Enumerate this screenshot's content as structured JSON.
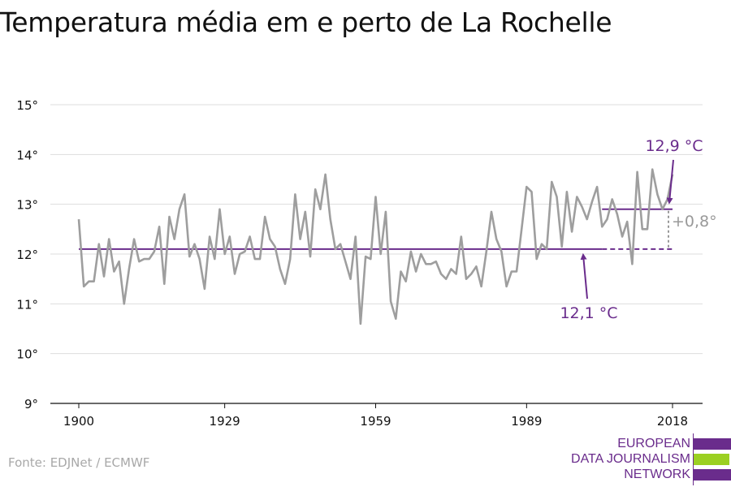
{
  "title": "Temperatura média em e perto de La Rochelle",
  "source": "Fonte: EDJNet / ECMWF",
  "logo": {
    "lines": [
      "EUROPEAN",
      "DATA JOURNALISM",
      "NETWORK"
    ],
    "colors": {
      "purple": "#6a2c8c",
      "green": "#9bd022"
    }
  },
  "colors": {
    "series": "#9e9e9e",
    "reference": "#6a2c8c",
    "grid": "#dddddd",
    "axis": "#111111",
    "delta": "#999999"
  },
  "chart_data": {
    "type": "line",
    "title": "Temperatura média em e perto de La Rochelle",
    "xlabel": "",
    "ylabel": "",
    "xlim": [
      1900,
      2018
    ],
    "ylim": [
      9,
      15
    ],
    "x_ticks": [
      1900,
      1929,
      1959,
      1989,
      2018
    ],
    "y_ticks": [
      9,
      10,
      11,
      12,
      13,
      14,
      15
    ],
    "y_tick_labels": [
      "9°",
      "10°",
      "11°",
      "12°",
      "13°",
      "14°",
      "15°"
    ],
    "grid": true,
    "legend": "none",
    "series": [
      {
        "x": [
          1900,
          1901,
          1902,
          1903,
          1904,
          1905,
          1906,
          1907,
          1908,
          1909,
          1910,
          1911,
          1912,
          1913,
          1914,
          1915,
          1916,
          1917,
          1918,
          1919,
          1920,
          1921,
          1922,
          1923,
          1924,
          1925,
          1926,
          1927,
          1928,
          1929,
          1930,
          1931,
          1932,
          1933,
          1934,
          1935,
          1936,
          1937,
          1938,
          1939,
          1940,
          1941,
          1942,
          1943,
          1944,
          1945,
          1946,
          1947,
          1948,
          1949,
          1950,
          1951,
          1952,
          1953,
          1954,
          1955,
          1956,
          1957,
          1958,
          1959,
          1960,
          1961,
          1962,
          1963,
          1964,
          1965,
          1966,
          1967,
          1968,
          1969,
          1970,
          1971,
          1972,
          1973,
          1974,
          1975,
          1976,
          1977,
          1978,
          1979,
          1980,
          1981,
          1982,
          1983,
          1984,
          1985,
          1986,
          1987,
          1988,
          1989,
          1990,
          1991,
          1992,
          1993,
          1994,
          1995,
          1996,
          1997,
          1998,
          1999,
          2000,
          2001,
          2002,
          2003,
          2004,
          2005,
          2006,
          2007,
          2008,
          2009,
          2010,
          2011,
          2012,
          2013,
          2014,
          2015,
          2016,
          2017,
          2018
        ],
        "values": [
          12.7,
          11.35,
          11.45,
          11.45,
          12.2,
          11.55,
          12.3,
          11.65,
          11.85,
          11.0,
          11.7,
          12.3,
          11.85,
          11.9,
          11.9,
          12.05,
          12.55,
          11.4,
          12.75,
          12.3,
          12.9,
          13.2,
          11.95,
          12.2,
          11.9,
          11.3,
          12.35,
          11.9,
          12.9,
          12.0,
          12.35,
          11.6,
          12.0,
          12.05,
          12.35,
          11.9,
          11.9,
          12.75,
          12.3,
          12.15,
          11.7,
          11.4,
          11.9,
          13.2,
          12.3,
          12.85,
          11.95,
          13.3,
          12.9,
          13.6,
          12.7,
          12.1,
          12.2,
          11.85,
          11.5,
          12.35,
          10.6,
          11.95,
          11.9,
          13.15,
          12.0,
          12.85,
          11.05,
          10.7,
          11.65,
          11.45,
          12.05,
          11.65,
          12.0,
          11.8,
          11.8,
          11.85,
          11.6,
          11.5,
          11.7,
          11.6,
          12.35,
          11.5,
          11.6,
          11.75,
          11.35,
          12.05,
          12.85,
          12.3,
          12.05,
          11.35,
          11.65,
          11.65,
          12.5,
          13.35,
          13.25,
          11.9,
          12.2,
          12.1,
          13.45,
          13.15,
          12.15,
          13.25,
          12.45,
          13.15,
          12.95,
          12.7,
          13.05,
          13.35,
          12.55,
          12.7,
          13.1,
          12.8,
          12.35,
          12.65,
          11.8,
          13.65,
          12.5,
          12.5,
          13.7,
          13.2,
          12.9,
          13.1,
          13.6
        ]
      }
    ],
    "reference_lines": [
      {
        "label": "12,1 °C",
        "value": 12.1,
        "x_start": 1900,
        "x_end": 2004,
        "dashed_to": 2018
      },
      {
        "label": "12,9 °C",
        "value": 12.9,
        "x_start": 2004,
        "x_end": 2018
      }
    ],
    "annotations": {
      "baseline_label": "12,1 °C",
      "recent_label": "12,9 °C",
      "difference_label": "+0,8°"
    }
  }
}
